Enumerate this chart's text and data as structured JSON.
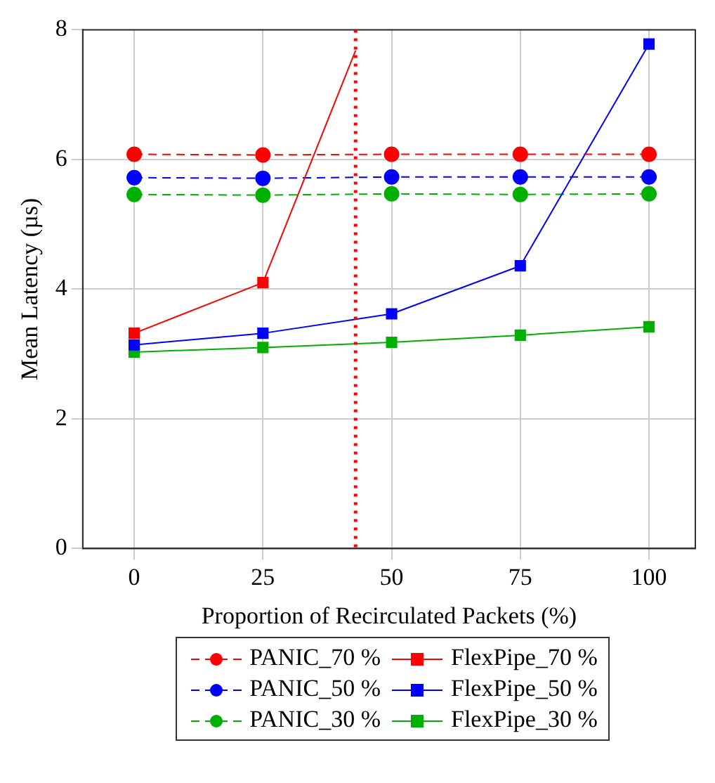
{
  "chart_data": {
    "type": "line",
    "xlabel": "Proportion of Recirculated Packets (%)",
    "ylabel": "Mean Latency (µs)",
    "x": [
      0,
      25,
      50,
      75,
      100
    ],
    "xlim": [
      -10,
      109
    ],
    "xticks": [
      0,
      25,
      50,
      75,
      100
    ],
    "ylim": [
      0,
      8
    ],
    "yticks": [
      0,
      2,
      4,
      6,
      8
    ],
    "grid": true,
    "legend": "bottom",
    "series": [
      {
        "name": "PANIC_70 %",
        "color": "#ff0000",
        "values": [
          6.08,
          6.07,
          6.08,
          6.08,
          6.08
        ],
        "marker": "circle",
        "line_style": "dashed"
      },
      {
        "name": "FlexPipe_70 %",
        "color": "#ff0000",
        "x": [
          0,
          25,
          43
        ],
        "values": [
          3.32,
          4.1,
          7.68
        ],
        "marker": "square",
        "line_style": "solid"
      },
      {
        "name": "PANIC_50 %",
        "color": "#0000ff",
        "values": [
          5.72,
          5.71,
          5.73,
          5.73,
          5.73
        ],
        "marker": "circle",
        "line_style": "dashed"
      },
      {
        "name": "FlexPipe_50 %",
        "color": "#0000ff",
        "values": [
          3.14,
          3.32,
          3.62,
          4.36,
          7.78
        ],
        "marker": "square",
        "line_style": "solid"
      },
      {
        "name": "PANIC_30 %",
        "color": "#00b000",
        "values": [
          5.46,
          5.45,
          5.47,
          5.46,
          5.47
        ],
        "marker": "circle",
        "line_style": "dashed"
      },
      {
        "name": "FlexPipe_30 %",
        "color": "#00b000",
        "values": [
          3.03,
          3.1,
          3.18,
          3.29,
          3.42
        ],
        "marker": "square",
        "line_style": "solid"
      }
    ],
    "ref_lines": [
      {
        "axis": "x",
        "value": 43,
        "color": "#ff0000",
        "line_style": "dotted"
      }
    ]
  }
}
